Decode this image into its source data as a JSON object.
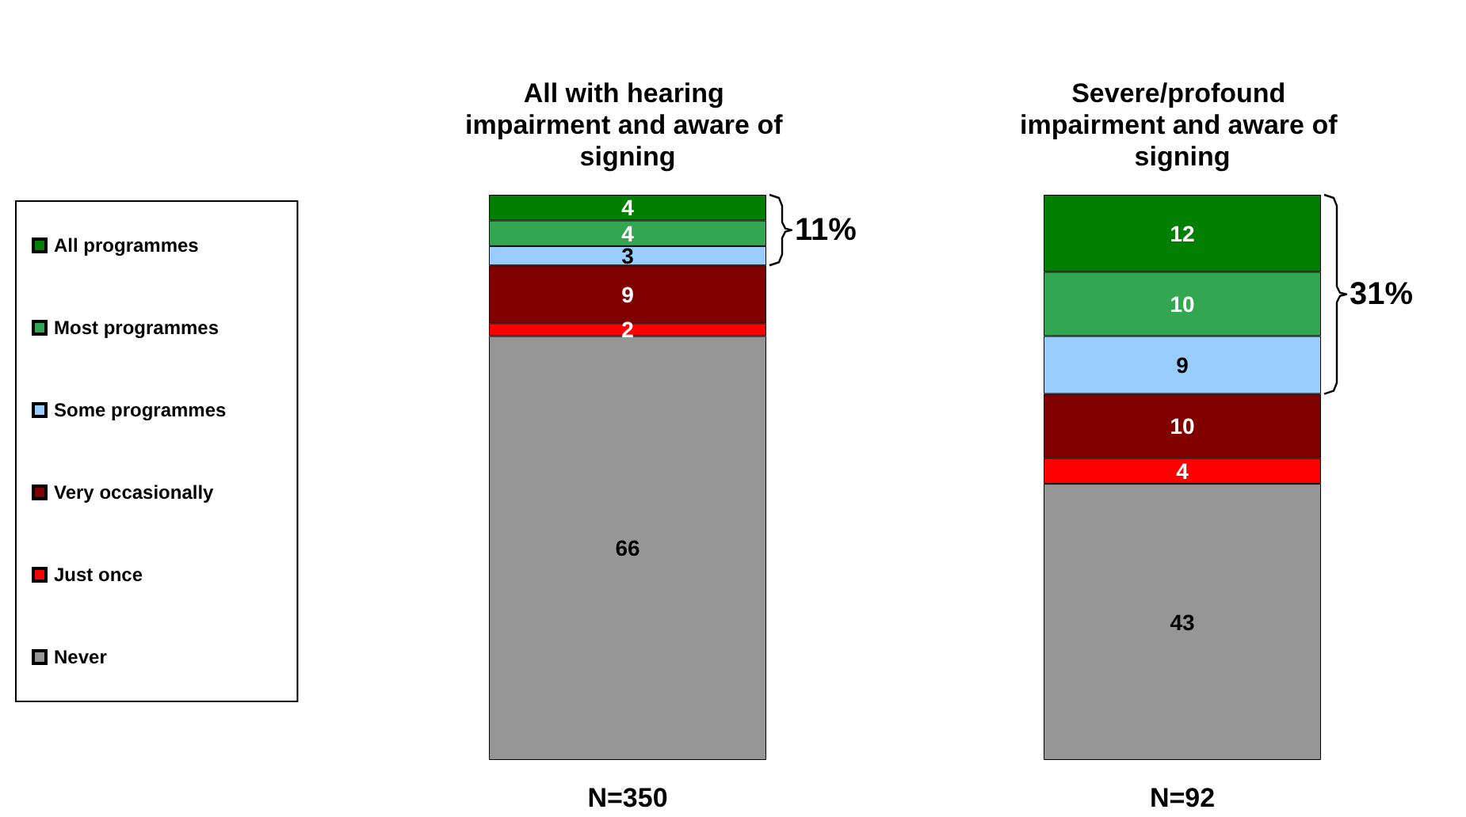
{
  "chart_data": {
    "type": "bar",
    "stacked": true,
    "data_labels": true,
    "legend": "left",
    "categories": [
      "All with hearing impairment and aware of signing",
      "Severe/profound impairment and aware of signing"
    ],
    "series": [
      {
        "name": "Never",
        "color": "#969696",
        "values": [
          66,
          43
        ]
      },
      {
        "name": "Just once",
        "color": "#ff0000",
        "values": [
          2,
          4
        ]
      },
      {
        "name": "Very occasionally",
        "color": "#800000",
        "values": [
          9,
          10
        ]
      },
      {
        "name": "Some programmes",
        "color": "#99ccff",
        "values": [
          3,
          9
        ]
      },
      {
        "name": "Most programmes",
        "color": "#33a652",
        "values": [
          4,
          10
        ]
      },
      {
        "name": "All programmes",
        "color": "#007f00",
        "values": [
          4,
          12
        ]
      }
    ],
    "annotations": [
      "11%",
      "31%",
      "N=350",
      "N=92"
    ]
  }
}
